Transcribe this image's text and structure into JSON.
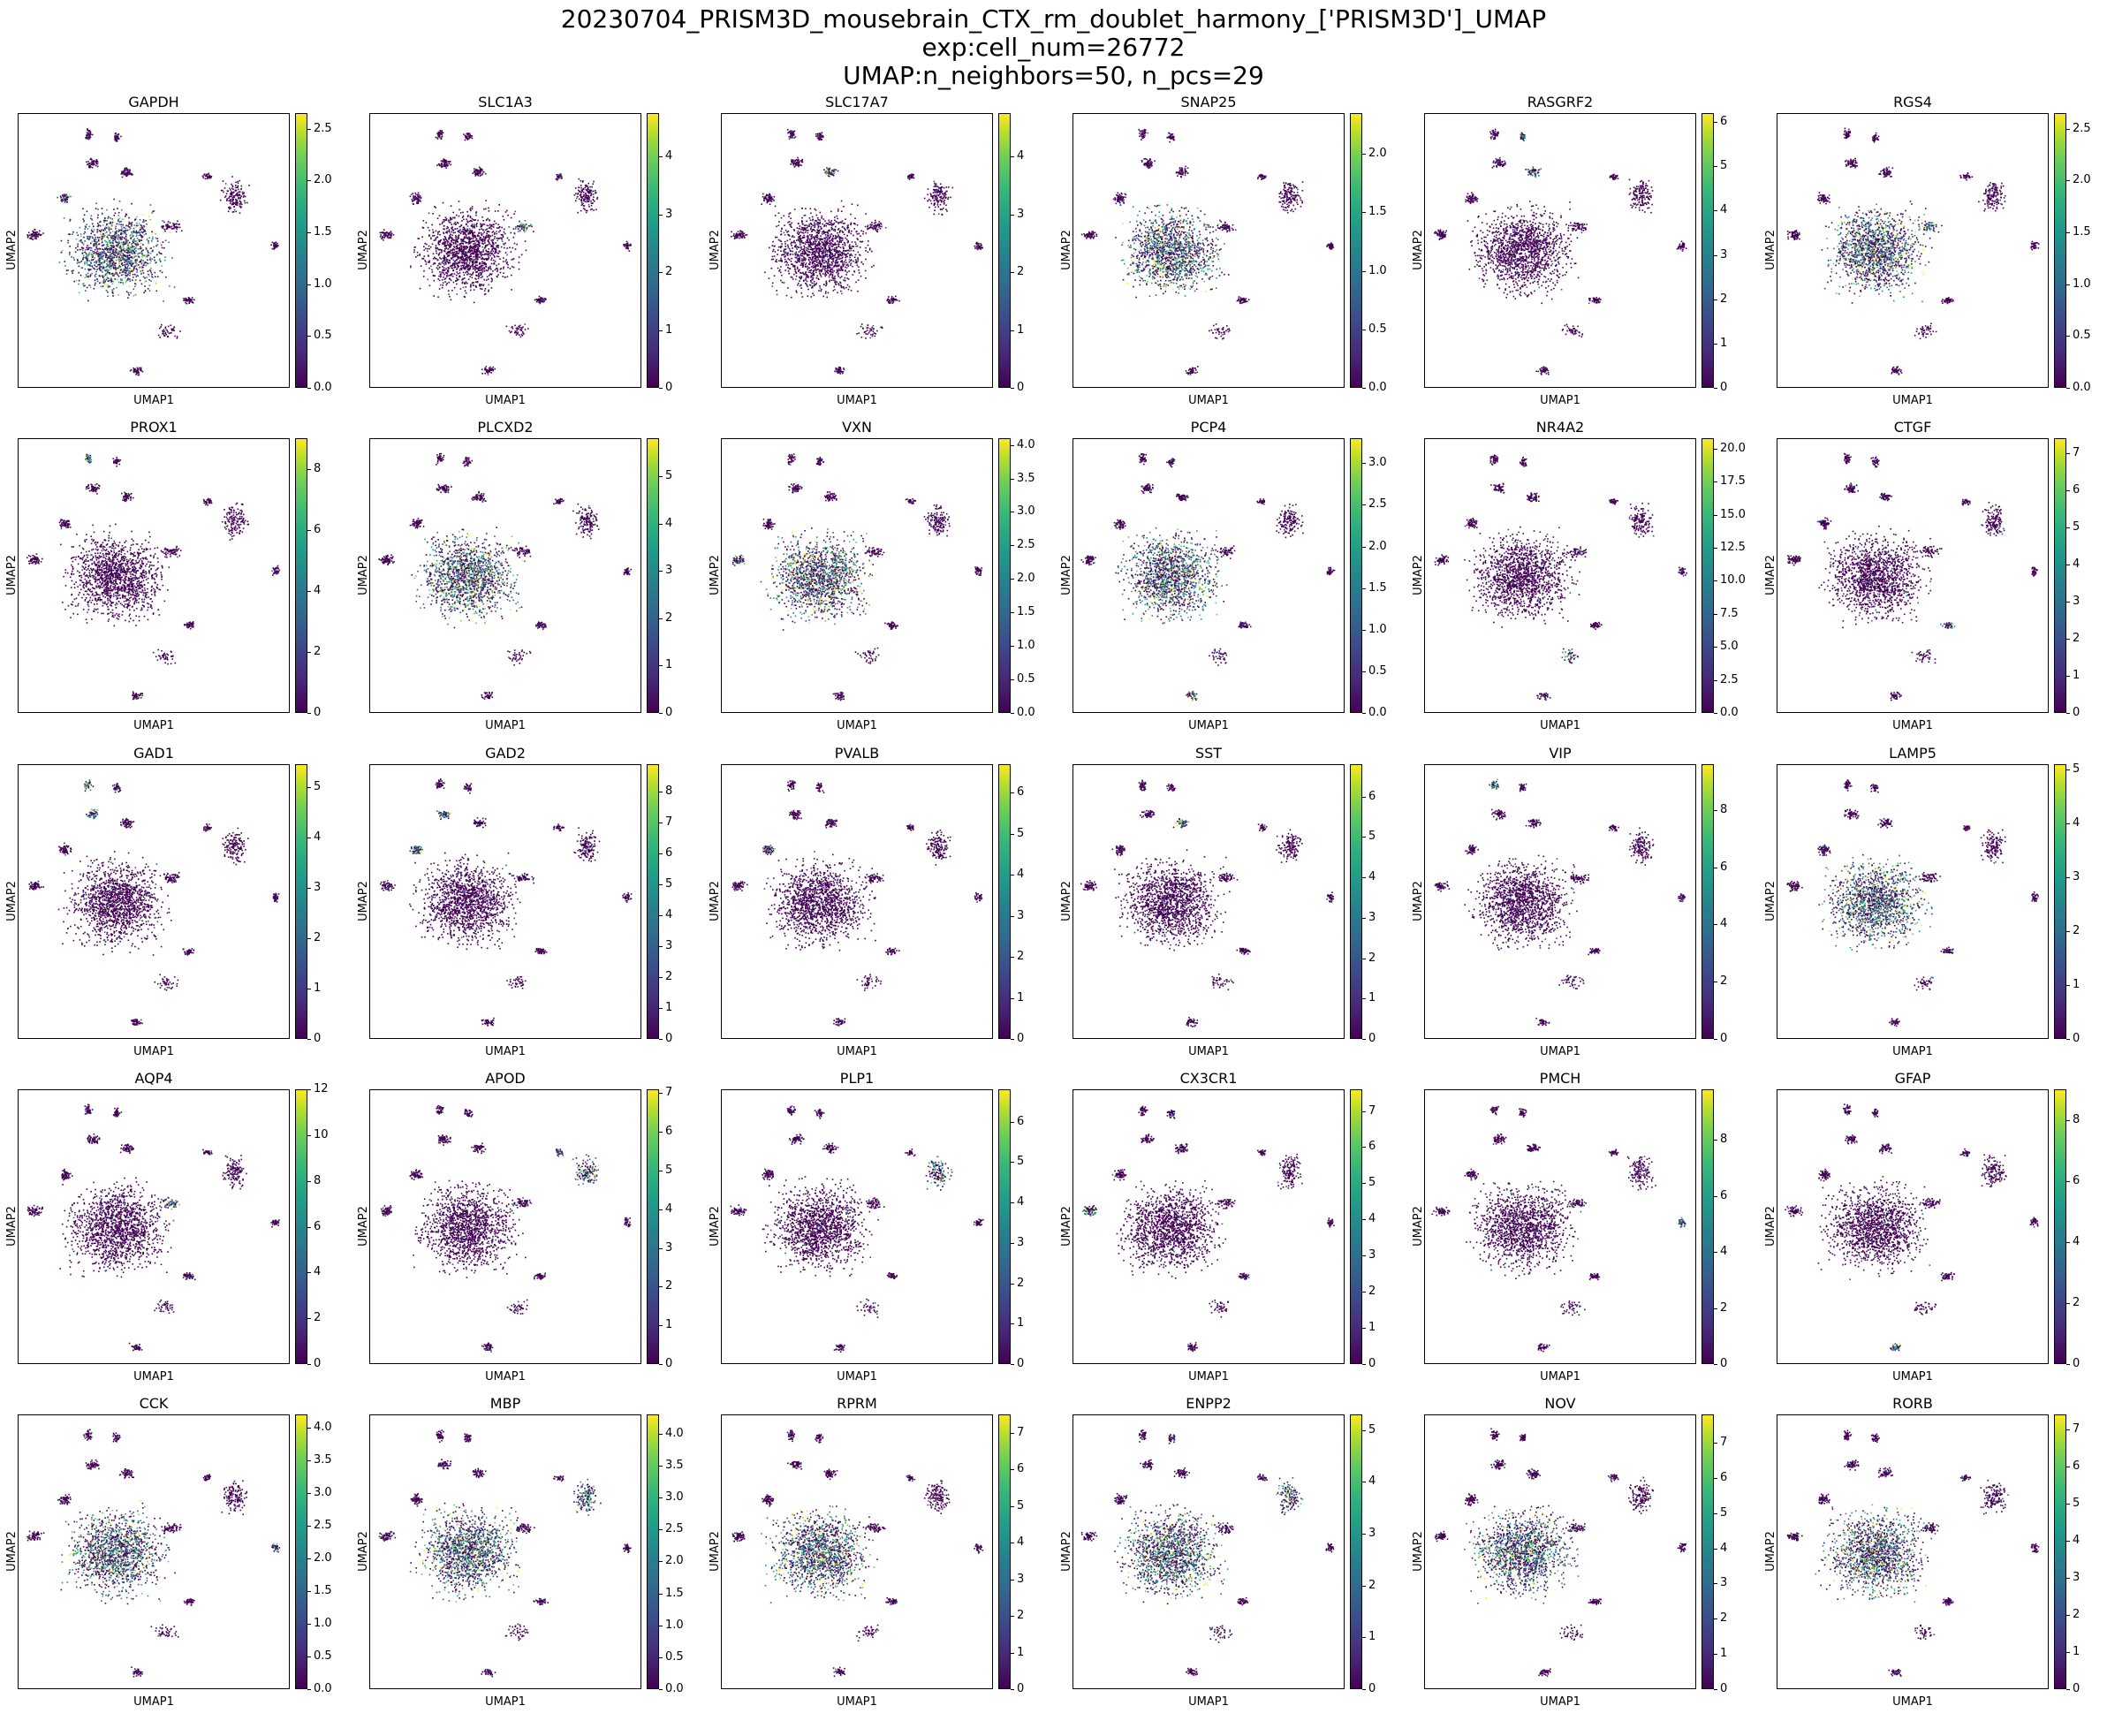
{
  "figure": {
    "title_lines": [
      "20230704_PRISM3D_mousebrain_CTX_rm_doublet_harmony_['PRISM3D']_UMAP",
      "exp:cell_num=26772",
      "UMAP:n_neighbors=50, n_pcs=29"
    ]
  },
  "chart_data": {
    "type": "scatter",
    "layout": "grid",
    "rows": 5,
    "cols": 6,
    "xlabel": "UMAP1",
    "ylabel": "UMAP2",
    "colormap": "viridis",
    "colors": [
      "#440154",
      "#3b528b",
      "#21918c",
      "#5ec962",
      "#fde725"
    ],
    "panels": [
      {
        "gene": "GAPDH",
        "ticks": [
          "0.0",
          "0.5",
          "1.0",
          "1.5",
          "2.0",
          "2.5"
        ],
        "vmax": 2.65
      },
      {
        "gene": "SLC1A3",
        "ticks": [
          "0",
          "1",
          "2",
          "3",
          "4"
        ],
        "vmax": 4.75
      },
      {
        "gene": "SLC17A7",
        "ticks": [
          "0",
          "1",
          "2",
          "3",
          "4"
        ],
        "vmax": 4.75
      },
      {
        "gene": "SNAP25",
        "ticks": [
          "0.0",
          "0.5",
          "1.0",
          "1.5",
          "2.0"
        ],
        "vmax": 2.35
      },
      {
        "gene": "RASGRF2",
        "ticks": [
          "0",
          "1",
          "2",
          "3",
          "4",
          "5",
          "6"
        ],
        "vmax": 6.2
      },
      {
        "gene": "RGS4",
        "ticks": [
          "0.0",
          "0.5",
          "1.0",
          "1.5",
          "2.0",
          "2.5"
        ],
        "vmax": 2.65
      },
      {
        "gene": "PROX1",
        "ticks": [
          "0",
          "2",
          "4",
          "6",
          "8"
        ],
        "vmax": 9.0
      },
      {
        "gene": "PLCXD2",
        "ticks": [
          "0",
          "1",
          "2",
          "3",
          "4",
          "5"
        ],
        "vmax": 5.8
      },
      {
        "gene": "VXN",
        "ticks": [
          "0.0",
          "0.5",
          "1.0",
          "1.5",
          "2.0",
          "2.5",
          "3.0",
          "3.5",
          "4.0"
        ],
        "vmax": 4.1
      },
      {
        "gene": "PCP4",
        "ticks": [
          "0.0",
          "0.5",
          "1.0",
          "1.5",
          "2.0",
          "2.5",
          "3.0"
        ],
        "vmax": 3.3
      },
      {
        "gene": "NR4A2",
        "ticks": [
          "0.0",
          "2.5",
          "5.0",
          "7.5",
          "10.0",
          "12.5",
          "15.0",
          "17.5",
          "20.0"
        ],
        "vmax": 20.8
      },
      {
        "gene": "CTGF",
        "ticks": [
          "0",
          "1",
          "2",
          "3",
          "4",
          "5",
          "6",
          "7"
        ],
        "vmax": 7.4
      },
      {
        "gene": "GAD1",
        "ticks": [
          "0",
          "1",
          "2",
          "3",
          "4",
          "5"
        ],
        "vmax": 5.45
      },
      {
        "gene": "GAD2",
        "ticks": [
          "0",
          "1",
          "2",
          "3",
          "4",
          "5",
          "6",
          "7",
          "8"
        ],
        "vmax": 8.9
      },
      {
        "gene": "PVALB",
        "ticks": [
          "0",
          "1",
          "2",
          "3",
          "4",
          "5",
          "6"
        ],
        "vmax": 6.7
      },
      {
        "gene": "SST",
        "ticks": [
          "0",
          "1",
          "2",
          "3",
          "4",
          "5",
          "6"
        ],
        "vmax": 6.8
      },
      {
        "gene": "VIP",
        "ticks": [
          "0",
          "2",
          "4",
          "6",
          "8"
        ],
        "vmax": 9.6
      },
      {
        "gene": "LAMP5",
        "ticks": [
          "0",
          "1",
          "2",
          "3",
          "4",
          "5"
        ],
        "vmax": 5.1
      },
      {
        "gene": "AQP4",
        "ticks": [
          "0",
          "2",
          "4",
          "6",
          "8",
          "10",
          "12"
        ],
        "vmax": 12.0
      },
      {
        "gene": "APOD",
        "ticks": [
          "0",
          "1",
          "2",
          "3",
          "4",
          "5",
          "6",
          "7"
        ],
        "vmax": 7.1
      },
      {
        "gene": "PLP1",
        "ticks": [
          "0",
          "1",
          "2",
          "3",
          "4",
          "5",
          "6"
        ],
        "vmax": 6.8
      },
      {
        "gene": "CX3CR1",
        "ticks": [
          "0",
          "1",
          "2",
          "3",
          "4",
          "5",
          "6",
          "7"
        ],
        "vmax": 7.6
      },
      {
        "gene": "PMCH",
        "ticks": [
          "0",
          "2",
          "4",
          "6",
          "8"
        ],
        "vmax": 9.8
      },
      {
        "gene": "GFAP",
        "ticks": [
          "0",
          "2",
          "4",
          "6",
          "8"
        ],
        "vmax": 9.0
      },
      {
        "gene": "CCK",
        "ticks": [
          "0.0",
          "0.5",
          "1.0",
          "1.5",
          "2.0",
          "2.5",
          "3.0",
          "3.5",
          "4.0"
        ],
        "vmax": 4.2
      },
      {
        "gene": "MBP",
        "ticks": [
          "0.0",
          "0.5",
          "1.0",
          "1.5",
          "2.0",
          "2.5",
          "3.0",
          "3.5",
          "4.0"
        ],
        "vmax": 4.3
      },
      {
        "gene": "RPRM",
        "ticks": [
          "0",
          "1",
          "2",
          "3",
          "4",
          "5",
          "6",
          "7"
        ],
        "vmax": 7.5
      },
      {
        "gene": "ENPP2",
        "ticks": [
          "0",
          "1",
          "2",
          "3",
          "4",
          "5"
        ],
        "vmax": 5.3
      },
      {
        "gene": "NOV",
        "ticks": [
          "0",
          "1",
          "2",
          "3",
          "4",
          "5",
          "6",
          "7"
        ],
        "vmax": 7.8
      },
      {
        "gene": "RORB",
        "ticks": [
          "0",
          "1",
          "2",
          "3",
          "4",
          "5",
          "6",
          "7"
        ],
        "vmax": 7.4
      }
    ]
  }
}
